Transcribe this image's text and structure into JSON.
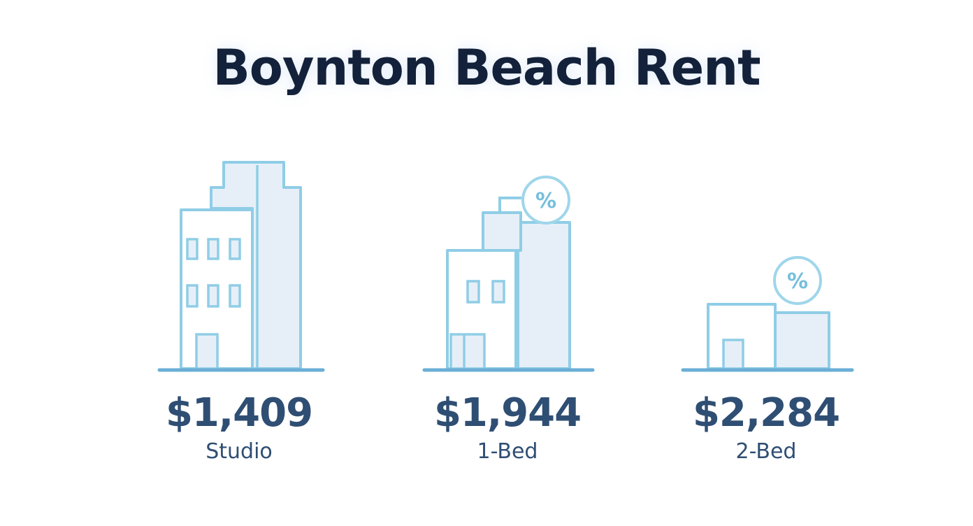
{
  "title": "Boynton Beach Rent",
  "units": [
    {
      "price": "$1,409",
      "label": "Studio"
    },
    {
      "price": "$1,944",
      "label": "1-Bed"
    },
    {
      "price": "$2,284",
      "label": "2-Bed"
    }
  ],
  "badge_symbol": "%",
  "colors": {
    "title": "#13213a",
    "text": "#2f4e73",
    "outline": "#8fcde6",
    "fill": "#e6eff8",
    "ground": "#6aaed6"
  },
  "icons": [
    "tall-building-icon",
    "medium-building-icon",
    "low-building-icon",
    "percent-badge-icon"
  ]
}
